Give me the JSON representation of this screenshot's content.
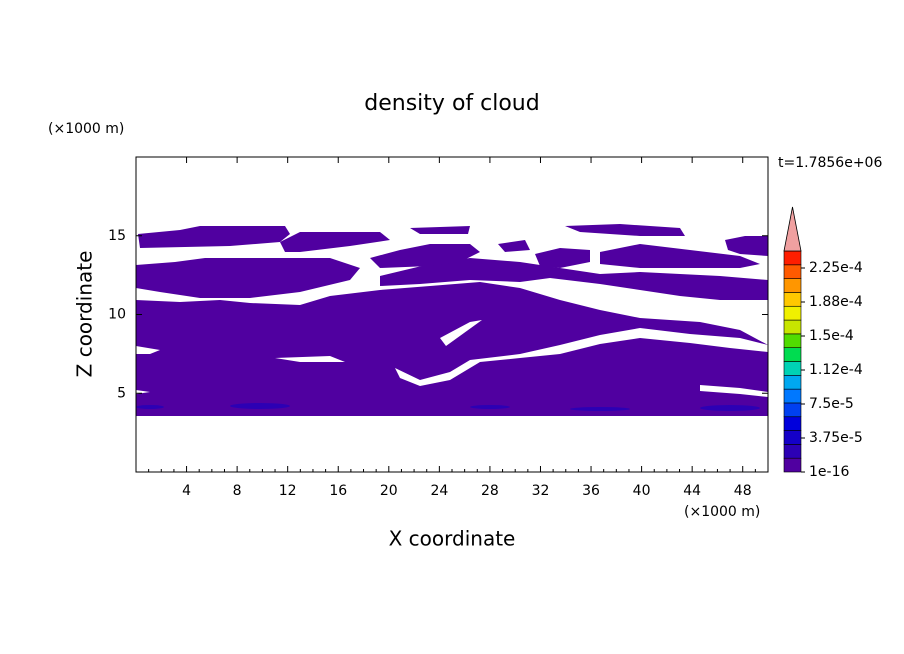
{
  "chart_data": {
    "type": "contour",
    "title": "density of cloud",
    "x_label": "X coordinate",
    "y_label": "Z coordinate",
    "x_unit": "(×1000 m)",
    "y_unit": "(×1000 m)",
    "annotation": "t=1.7856e+06",
    "xlim": [
      0,
      50
    ],
    "xticks": [
      4,
      8,
      12,
      16,
      20,
      24,
      28,
      32,
      36,
      40,
      44,
      48
    ],
    "ylim": [
      0,
      20
    ],
    "yticks": [
      5,
      10,
      15
    ],
    "colorbar": {
      "lim": [
        1e-16,
        0.00024375
      ],
      "ticks": [
        1e-16,
        {
          "value": 3.75e-05,
          "label": "3.75e-5"
        },
        {
          "value": 7.5e-05,
          "label": "7.5e-5"
        },
        {
          "value": 0.0001125,
          "label": "1.12e-4"
        },
        {
          "value": 0.00015,
          "label": "1.5e-4"
        },
        {
          "value": 0.0001875,
          "label": "1.88e-4"
        },
        {
          "value": 0.000225,
          "label": "2.25e-4"
        }
      ],
      "colors": [
        "#5000a0",
        "#2c00b4",
        "#1400c8",
        "#0000dc",
        "#0040f0",
        "#0078ff",
        "#00a8f0",
        "#00d2b4",
        "#00dc50",
        "#50dc00",
        "#c8e600",
        "#f0f000",
        "#ffc800",
        "#ff9600",
        "#ff5a00",
        "#ff1e00"
      ],
      "extend_color": "#f0a0a0"
    }
  }
}
